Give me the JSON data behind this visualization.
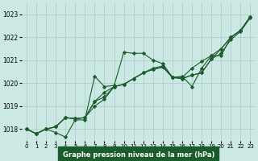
{
  "title": "Graphe pression niveau de la mer (hPa)",
  "bg_color": "#cce8e4",
  "grid_color": "#b0cfcb",
  "line_color": "#1a5c2a",
  "label_bg": "#1a5c2a",
  "label_fg": "#ffffff",
  "xlim": [
    -0.5,
    23.5
  ],
  "ylim": [
    1017.5,
    1023.5
  ],
  "yticks": [
    1018,
    1019,
    1020,
    1021,
    1022,
    1023
  ],
  "xticks": [
    0,
    1,
    2,
    3,
    4,
    5,
    6,
    7,
    8,
    9,
    10,
    11,
    12,
    13,
    14,
    15,
    16,
    17,
    18,
    19,
    20,
    21,
    22,
    23
  ],
  "line1": [
    1018.0,
    1017.8,
    1018.0,
    1017.85,
    1017.65,
    1018.4,
    1018.4,
    1020.3,
    1019.85,
    1019.9,
    1021.35,
    1021.3,
    1021.3,
    1021.0,
    1020.85,
    1020.25,
    1020.3,
    1019.85,
    1020.65,
    1021.2,
    1021.2,
    1022.0,
    1022.3,
    1022.9
  ],
  "line2": [
    1018.0,
    1017.8,
    1018.0,
    1018.1,
    1018.5,
    1018.45,
    1018.5,
    1019.2,
    1019.4,
    1019.85,
    1019.95,
    1020.2,
    1020.45,
    1020.6,
    1020.7,
    1020.25,
    1020.2,
    1020.35,
    1020.45,
    1021.05,
    1021.5,
    1022.0,
    1022.3,
    1022.9
  ],
  "line3": [
    1018.0,
    1017.8,
    1018.0,
    1018.1,
    1018.5,
    1018.45,
    1018.5,
    1019.2,
    1019.6,
    1019.85,
    1019.95,
    1020.2,
    1020.45,
    1020.65,
    1020.75,
    1020.25,
    1020.25,
    1020.65,
    1020.95,
    1021.2,
    1021.5,
    1022.0,
    1022.3,
    1022.9
  ],
  "line4": [
    1018.0,
    1017.8,
    1018.0,
    1018.1,
    1018.5,
    1018.45,
    1018.5,
    1019.0,
    1019.3,
    1019.85,
    1019.95,
    1020.2,
    1020.45,
    1020.6,
    1020.7,
    1020.25,
    1020.2,
    1020.35,
    1020.45,
    1021.05,
    1021.3,
    1021.9,
    1022.25,
    1022.85
  ]
}
